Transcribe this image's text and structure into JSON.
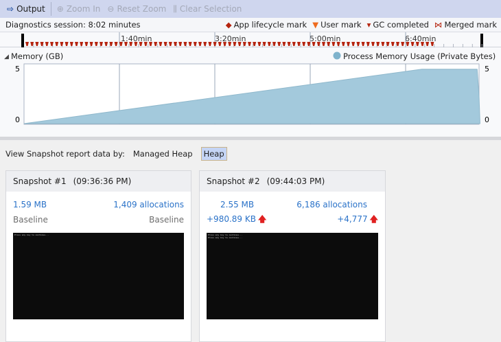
{
  "toolbar": {
    "output": "Output",
    "zoom_in": "Zoom In",
    "reset_zoom": "Reset Zoom",
    "clear_selection": "Clear Selection"
  },
  "session": {
    "label": "Diagnostics session: 8:02 minutes"
  },
  "legend": {
    "app_lifecycle": "App lifecycle mark",
    "user_mark": "User mark",
    "gc_completed": "GC completed",
    "merged_mark": "Merged mark"
  },
  "ruler": {
    "ticks": [
      "1:40min",
      "3:20min",
      "5:00min",
      "6:40min"
    ]
  },
  "memory": {
    "title": "Memory (GB)",
    "series_label": "Process Memory Usage (Private Bytes)"
  },
  "colors": {
    "area": "#a3c9dc",
    "gc": "#b5240f",
    "app": "#b5240f",
    "user": "#ee6a1e",
    "accent": "#2a72c8",
    "up_arrow": "#e02020"
  },
  "chart_data": {
    "type": "area",
    "title": "Memory (GB)",
    "series": [
      {
        "name": "Process Memory Usage (Private Bytes)",
        "x_seconds": [
          0,
          417,
          475,
          477,
          478
        ],
        "values": [
          0,
          4.95,
          4.95,
          2.4,
          0
        ]
      }
    ],
    "ylim": [
      0,
      5
    ],
    "y_ticks": [
      "0",
      "5"
    ],
    "x_ticks": [
      "1:40min",
      "3:20min",
      "5:00min",
      "6:40min"
    ],
    "xlim_seconds": [
      0,
      482
    ],
    "grid": true,
    "legend": "top-right"
  },
  "view": {
    "label": "View Snapshot report data by:",
    "options": [
      "Managed Heap",
      "Heap"
    ],
    "selected": "Heap"
  },
  "snapshots": [
    {
      "title": "Snapshot #1",
      "time": "(09:36:36 PM)",
      "size": "1.59 MB",
      "allocations": "1,409 allocations",
      "size_diff": "Baseline",
      "alloc_diff": "Baseline",
      "console": "Press any key to continue..."
    },
    {
      "title": "Snapshot #2",
      "time": "(09:44:03 PM)",
      "size": "2.55 MB",
      "allocations": "6,186 allocations",
      "size_diff": "+980.89 KB",
      "alloc_diff": "+4,777",
      "console": "Press any key to continue...\nPress any key to continue..."
    }
  ]
}
